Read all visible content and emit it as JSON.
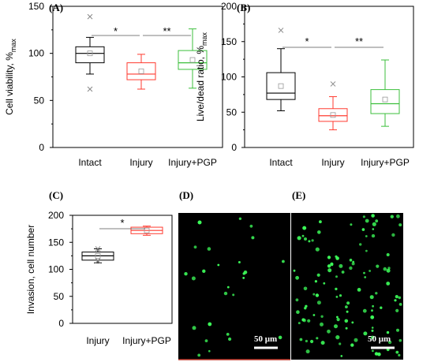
{
  "panels": {
    "A": "(A)",
    "B": "(B)",
    "C": "(C)",
    "D": "(D)",
    "E": "(E)"
  },
  "chart_data": [
    {
      "id": "A",
      "type": "box",
      "ylabel": "Cell viability, %",
      "ylabel_sub": "max",
      "ylim": [
        0,
        150
      ],
      "yticks": [
        "0",
        "50",
        "100",
        "150"
      ],
      "categories": [
        "Intact",
        "Injury",
        "Injury+PGP"
      ],
      "boxes": [
        {
          "name": "Intact",
          "color": "#000000",
          "q1": 90,
          "median": 100,
          "q3": 107,
          "whisker_low": 78,
          "whisker_high": 117,
          "mean": 100,
          "outliers": [
            139,
            62
          ]
        },
        {
          "name": "Injury",
          "color": "#ff3b30",
          "q1": 72,
          "median": 78,
          "q3": 90,
          "whisker_low": 62,
          "whisker_high": 99,
          "mean": 81,
          "outliers": []
        },
        {
          "name": "Injury+PGP",
          "color": "#3cbf3c",
          "q1": 83,
          "median": 90,
          "q3": 103,
          "whisker_low": 63,
          "whisker_high": 126,
          "mean": 93,
          "outliers": []
        }
      ],
      "significance": [
        {
          "from": 0,
          "to": 1,
          "label": "*"
        },
        {
          "from": 1,
          "to": 2,
          "label": "**"
        }
      ]
    },
    {
      "id": "B",
      "type": "box",
      "ylabel": "Live/dead ratio, %",
      "ylabel_sub": "max",
      "ylim": [
        0,
        200
      ],
      "yticks": [
        "0",
        "50",
        "100",
        "150",
        "200"
      ],
      "categories": [
        "Intact",
        "Injury",
        "Injury+PGP"
      ],
      "boxes": [
        {
          "name": "Intact",
          "color": "#000000",
          "q1": 68,
          "median": 77,
          "q3": 106,
          "whisker_low": 52,
          "whisker_high": 140,
          "mean": 87,
          "outliers": [
            166
          ]
        },
        {
          "name": "Injury",
          "color": "#ff3b30",
          "q1": 37,
          "median": 45,
          "q3": 55,
          "whisker_low": 25,
          "whisker_high": 72,
          "mean": 46,
          "outliers": [
            90
          ]
        },
        {
          "name": "Injury+PGP",
          "color": "#3cbf3c",
          "q1": 48,
          "median": 62,
          "q3": 82,
          "whisker_low": 30,
          "whisker_high": 124,
          "mean": 68,
          "outliers": []
        }
      ],
      "significance": [
        {
          "from": 0,
          "to": 1,
          "label": "*"
        },
        {
          "from": 1,
          "to": 2,
          "label": "**"
        }
      ]
    },
    {
      "id": "C",
      "type": "box",
      "ylabel": "Invasion, cell number",
      "ylim": [
        0,
        200
      ],
      "yticks": [
        "0",
        "50",
        "100",
        "150",
        "200"
      ],
      "categories": [
        "Injury",
        "Injury+PGP"
      ],
      "boxes": [
        {
          "name": "Injury",
          "color": "#000000",
          "q1": 117,
          "median": 125,
          "q3": 132,
          "whisker_low": 112,
          "whisker_high": 138,
          "mean": 125,
          "outliers": [
            138,
            116
          ]
        },
        {
          "name": "Injury+PGP",
          "color": "#ff3b30",
          "q1": 166,
          "median": 172,
          "q3": 178,
          "whisker_low": 163,
          "whisker_high": 180,
          "mean": 172,
          "outliers": []
        }
      ],
      "significance": [
        {
          "from": 0,
          "to": 1,
          "label": "*"
        }
      ]
    }
  ],
  "micrographs": {
    "D": {
      "scale_label": "50 μm"
    },
    "E": {
      "scale_label": "50 μm"
    }
  }
}
